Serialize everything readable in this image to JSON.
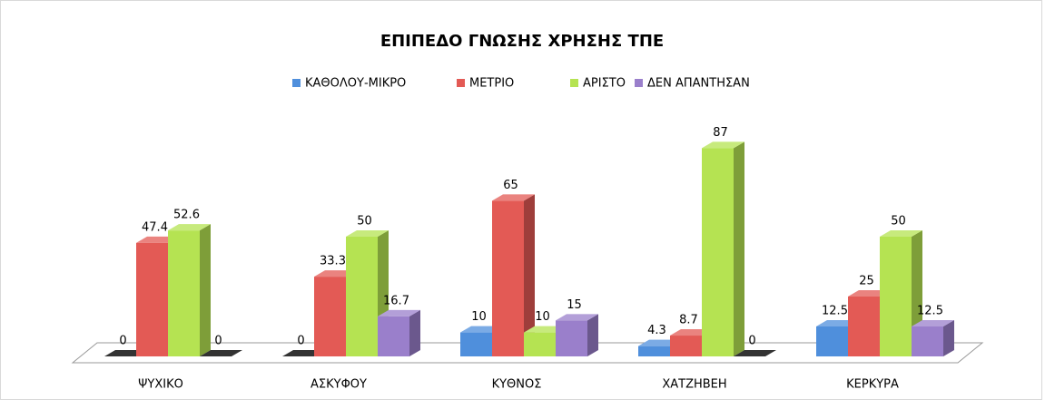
{
  "chart_data": {
    "type": "bar3d",
    "title": "ΕΠΙΠΕΔΟ ΓΝΩΣΗΣ ΧΡΗΣΗΣ ΤΠΕ",
    "categories": [
      "ΨΥΧΙΚΟ",
      "ΑΣΚΥΦΟΥ",
      "ΚΥΘΝΟΣ",
      "ΧΑΤΖΗΒΕΗ",
      "ΚΕΡΚΥΡΑ"
    ],
    "series": [
      {
        "name": "ΚΑΘΟΛΟΥ-ΜΙΚΡΟ",
        "color": "#4f8fdc",
        "values": [
          0,
          0,
          10,
          4.3,
          12.5
        ]
      },
      {
        "name": "ΜΕΤΡΙΟ",
        "color": "#e35a55",
        "values": [
          47.4,
          33.3,
          65,
          8.7,
          25
        ]
      },
      {
        "name": "ΑΡΙΣΤΟ",
        "color": "#b5e352",
        "values": [
          52.6,
          50,
          10,
          87,
          50
        ]
      },
      {
        "name": "ΔΕΝ ΑΠΑΝΤΗΣΑΝ",
        "color": "#9a7fcb",
        "values": [
          0,
          16.7,
          15,
          0,
          12.5
        ]
      }
    ],
    "legend": "top"
  }
}
